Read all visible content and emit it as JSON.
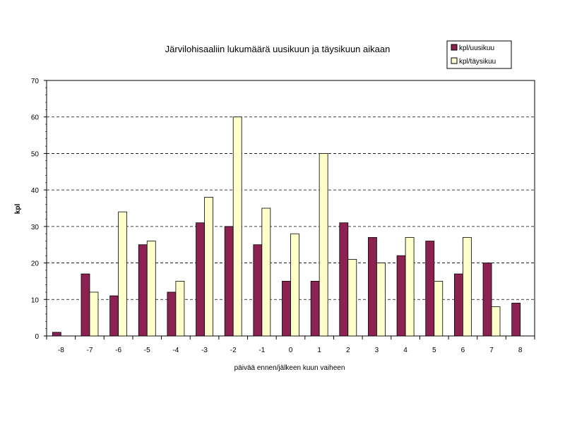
{
  "chart_data": {
    "type": "bar",
    "title": "Järvilohisaaliin lukumäärä uusikuun ja täysikuun aikaan",
    "xlabel": "päivää ennen/jälkeen kuun vaiheen",
    "ylabel": "kpl",
    "categories": [
      "-8",
      "-7",
      "-6",
      "-5",
      "-4",
      "-3",
      "-2",
      "-1",
      "0",
      "1",
      "2",
      "3",
      "4",
      "5",
      "6",
      "7",
      "8"
    ],
    "series": [
      {
        "name": "kpl/uusikuu",
        "color": "#8b2252",
        "values": [
          1,
          17,
          11,
          25,
          12,
          31,
          30,
          25,
          15,
          15,
          31,
          27,
          22,
          26,
          17,
          20,
          9
        ]
      },
      {
        "name": "kpl/täysikuu",
        "color": "#ffffcc",
        "values": [
          null,
          12,
          34,
          26,
          15,
          38,
          60,
          35,
          28,
          50,
          21,
          20,
          27,
          15,
          27,
          8,
          null
        ]
      }
    ],
    "ylim": [
      0,
      70
    ],
    "yticks": [
      0,
      10,
      20,
      30,
      40,
      50,
      60,
      70
    ],
    "grid": "horizontal dashed",
    "legend_position": "top-right"
  }
}
